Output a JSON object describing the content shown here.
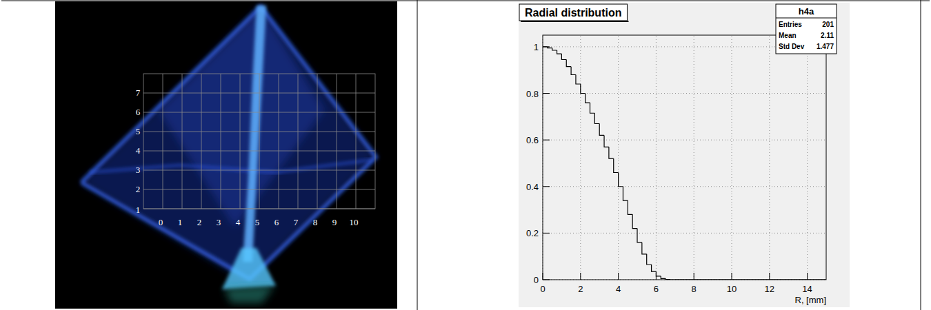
{
  "chart_data": [
    {
      "type": "image",
      "xlim": [
        -1,
        11
      ],
      "xticks": [
        0,
        1,
        2,
        3,
        4,
        5,
        6,
        7,
        8,
        9,
        10
      ],
      "ylim": [
        1,
        8
      ],
      "yticks": [
        1,
        2,
        3,
        4,
        5,
        6,
        7
      ],
      "grid": true
    },
    {
      "type": "histogram",
      "title": "Radial distribution",
      "x_label": "R, [mm]",
      "bins": [
        0,
        0.25,
        0.5,
        0.75,
        1,
        1.25,
        1.5,
        1.75,
        2,
        2.25,
        2.5,
        2.75,
        3,
        3.25,
        3.5,
        3.75,
        4,
        4.25,
        4.5,
        4.75,
        5,
        5.25,
        5.5,
        5.75,
        6,
        6.25,
        6.5,
        6.75,
        7,
        7.25,
        7.5,
        7.75,
        8,
        8.25,
        8.5,
        8.75,
        9,
        9.25,
        9.5,
        9.75,
        10,
        10.25,
        10.5,
        10.75,
        11,
        11.25,
        11.5,
        11.75,
        12,
        12.25,
        12.5,
        12.75,
        13,
        13.25,
        13.5,
        13.75,
        14,
        14.25,
        14.5,
        14.75,
        15
      ],
      "values": [
        1.0,
        0.995,
        0.985,
        0.97,
        0.945,
        0.915,
        0.88,
        0.84,
        0.8,
        0.76,
        0.715,
        0.67,
        0.62,
        0.57,
        0.52,
        0.46,
        0.4,
        0.34,
        0.28,
        0.22,
        0.16,
        0.11,
        0.065,
        0.035,
        0.015,
        0.005,
        0.001,
        0,
        0,
        0,
        0,
        0,
        0,
        0,
        0,
        0,
        0,
        0,
        0,
        0,
        0,
        0,
        0,
        0,
        0,
        0,
        0,
        0,
        0,
        0,
        0,
        0,
        0,
        0,
        0,
        0,
        0,
        0,
        0,
        0
      ],
      "color": "#000000",
      "xlim": [
        0,
        15
      ],
      "xticks": [
        0,
        2,
        4,
        6,
        8,
        10,
        12,
        14
      ],
      "ylim": [
        0,
        1.05
      ],
      "yticks": [
        0,
        0.2,
        0.4,
        0.6,
        0.8,
        1
      ],
      "grid": true,
      "stats": {
        "title": "h4a",
        "rows": [
          {
            "label": "Entries",
            "value": 201
          },
          {
            "label": "Mean",
            "value": 2.11
          },
          {
            "label": "Std Dev",
            "value": 1.477
          }
        ]
      }
    }
  ]
}
